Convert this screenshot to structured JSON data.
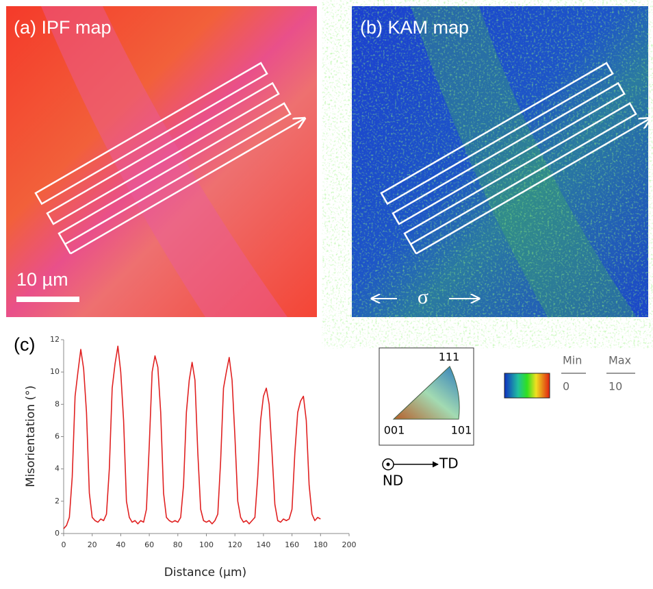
{
  "panels": {
    "a": {
      "label": "(a) IPF map",
      "scale_bar": "10 µm"
    },
    "b": {
      "label": "(b) KAM map",
      "stress": "σ"
    },
    "c": {
      "label": "(c)"
    }
  },
  "chart_data": {
    "type": "line",
    "xlabel": "Distance (µm)",
    "ylabel": "Misorientation (°)",
    "color": "#e02020",
    "x": [
      0,
      2,
      4,
      6,
      8,
      10,
      12,
      14,
      16,
      18,
      20,
      22,
      24,
      26,
      28,
      30,
      32,
      34,
      36,
      38,
      40,
      42,
      44,
      46,
      48,
      50,
      52,
      54,
      56,
      58,
      60,
      62,
      64,
      66,
      68,
      70,
      72,
      74,
      76,
      78,
      80,
      82,
      84,
      86,
      88,
      90,
      92,
      94,
      96,
      98,
      100,
      102,
      104,
      106,
      108,
      110,
      112,
      114,
      116,
      118,
      120,
      122,
      124,
      126,
      128,
      130,
      132,
      134,
      136,
      138,
      140,
      142,
      144,
      146,
      148,
      150,
      152,
      154,
      156,
      158,
      160,
      162,
      164,
      166,
      168,
      170,
      172,
      174,
      176,
      178,
      180
    ],
    "values": [
      0.3,
      0.5,
      1.0,
      3.5,
      8.5,
      10.0,
      11.4,
      10.2,
      7.5,
      2.5,
      1.0,
      0.8,
      0.7,
      0.9,
      0.8,
      1.2,
      4.0,
      9.0,
      10.5,
      11.6,
      10.0,
      7.0,
      2.0,
      1.0,
      0.7,
      0.8,
      0.6,
      0.8,
      0.7,
      1.5,
      5.5,
      10.0,
      11.0,
      10.3,
      7.5,
      2.5,
      1.0,
      0.8,
      0.7,
      0.8,
      0.7,
      1.0,
      3.0,
      7.5,
      9.5,
      10.6,
      9.5,
      5.0,
      1.5,
      0.8,
      0.7,
      0.8,
      0.6,
      0.8,
      1.2,
      4.5,
      9.0,
      10.0,
      10.9,
      9.5,
      6.0,
      2.0,
      1.0,
      0.7,
      0.8,
      0.6,
      0.8,
      1.0,
      3.5,
      7.0,
      8.5,
      9.0,
      8.0,
      5.0,
      1.8,
      0.8,
      0.7,
      0.9,
      0.8,
      0.9,
      1.5,
      5.0,
      7.5,
      8.2,
      8.5,
      7.0,
      3.0,
      1.2,
      0.8,
      1.0,
      0.9
    ],
    "xlim": [
      0,
      200
    ],
    "xticks": [
      0,
      20,
      40,
      60,
      80,
      100,
      120,
      140,
      160,
      180,
      200
    ],
    "ylim": [
      0,
      12
    ],
    "yticks": [
      0,
      2,
      4,
      6,
      8,
      10,
      12
    ]
  },
  "ipf_legend": {
    "top": "111",
    "left": "001",
    "right": "101"
  },
  "kam_legend": {
    "min_label": "Min",
    "max_label": "Max",
    "min": 0,
    "max": 10
  },
  "axes_legend": {
    "normal": "ND",
    "transverse": "TD"
  }
}
